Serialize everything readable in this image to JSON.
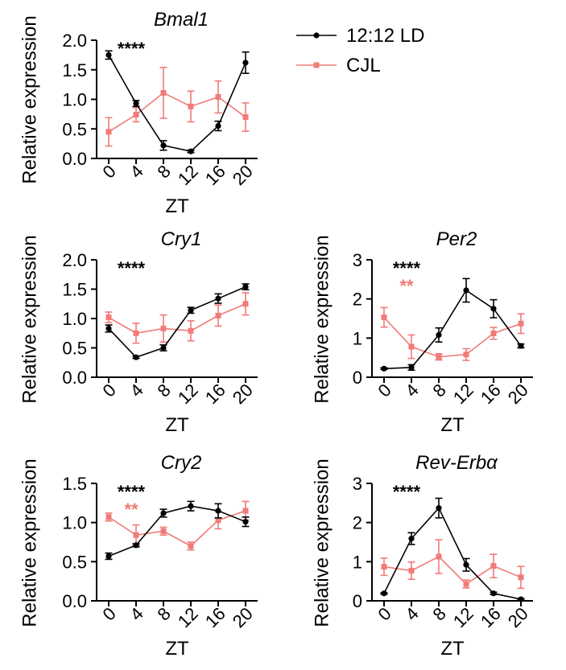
{
  "legend": {
    "entries": [
      {
        "label": "12:12 LD",
        "color": "#000000"
      },
      {
        "label": "CJL",
        "color": "#f07b78"
      }
    ]
  },
  "chart_data": [
    {
      "type": "line",
      "title": "Bmal1",
      "xlabel": "ZT",
      "ylabel": "Relative expression",
      "x": [
        0,
        4,
        8,
        12,
        16,
        20
      ],
      "x_tick_labels": [
        "0",
        "4",
        "8",
        "12",
        "16",
        "20"
      ],
      "ylim": [
        0,
        2.0
      ],
      "y_ticks": [
        0,
        0.5,
        1.0,
        1.5,
        2.0
      ],
      "y_tick_labels": [
        "0.0",
        "0.5",
        "1.0",
        "1.5",
        "2.0"
      ],
      "series": [
        {
          "name": "12:12 LD",
          "color": "#000000",
          "values": [
            1.75,
            0.93,
            0.22,
            0.12,
            0.55,
            1.62
          ],
          "errors": [
            0.07,
            0.05,
            0.08,
            0.02,
            0.08,
            0.18
          ]
        },
        {
          "name": "CJL",
          "color": "#f07b78",
          "values": [
            0.45,
            0.74,
            1.11,
            0.88,
            1.04,
            0.7
          ],
          "errors": [
            0.24,
            0.12,
            0.43,
            0.26,
            0.27,
            0.24
          ]
        }
      ],
      "significance": [
        {
          "text": "****",
          "color": "#000000"
        }
      ]
    },
    {
      "type": "line",
      "title": "Cry1",
      "xlabel": "ZT",
      "ylabel": "Relative expression",
      "x": [
        0,
        4,
        8,
        12,
        16,
        20
      ],
      "x_tick_labels": [
        "0",
        "4",
        "8",
        "12",
        "16",
        "20"
      ],
      "ylim": [
        0,
        2.0
      ],
      "y_ticks": [
        0,
        0.5,
        1.0,
        1.5,
        2.0
      ],
      "y_tick_labels": [
        "0.0",
        "0.5",
        "1.0",
        "1.5",
        "2.0"
      ],
      "series": [
        {
          "name": "12:12 LD",
          "color": "#000000",
          "values": [
            0.83,
            0.34,
            0.5,
            1.14,
            1.34,
            1.54
          ],
          "errors": [
            0.06,
            0.02,
            0.05,
            0.05,
            0.08,
            0.05
          ]
        },
        {
          "name": "CJL",
          "color": "#f07b78",
          "values": [
            1.02,
            0.75,
            0.83,
            0.79,
            1.05,
            1.25
          ],
          "errors": [
            0.09,
            0.17,
            0.23,
            0.17,
            0.18,
            0.19
          ]
        }
      ],
      "significance": [
        {
          "text": "****",
          "color": "#000000"
        }
      ]
    },
    {
      "type": "line",
      "title": "Per2",
      "xlabel": "ZT",
      "ylabel": "Relative expression",
      "x": [
        0,
        4,
        8,
        12,
        16,
        20
      ],
      "x_tick_labels": [
        "0",
        "4",
        "8",
        "12",
        "16",
        "20"
      ],
      "ylim": [
        0,
        3
      ],
      "y_ticks": [
        0,
        1,
        2,
        3
      ],
      "y_tick_labels": [
        "0",
        "1",
        "2",
        "3"
      ],
      "series": [
        {
          "name": "12:12 LD",
          "color": "#000000",
          "values": [
            0.22,
            0.25,
            1.08,
            2.22,
            1.75,
            0.8
          ],
          "errors": [
            0.02,
            0.07,
            0.18,
            0.3,
            0.23,
            0.05
          ]
        },
        {
          "name": "CJL",
          "color": "#f07b78",
          "values": [
            1.53,
            0.78,
            0.52,
            0.58,
            1.12,
            1.37
          ],
          "errors": [
            0.25,
            0.3,
            0.08,
            0.15,
            0.15,
            0.25
          ]
        }
      ],
      "significance": [
        {
          "text": "****",
          "color": "#000000"
        },
        {
          "text": "**",
          "color": "#f07b78"
        }
      ]
    },
    {
      "type": "line",
      "title": "Cry2",
      "xlabel": "ZT",
      "ylabel": "Relative expression",
      "x": [
        0,
        4,
        8,
        12,
        16,
        20
      ],
      "x_tick_labels": [
        "0",
        "4",
        "8",
        "12",
        "16",
        "20"
      ],
      "ylim": [
        0,
        1.5
      ],
      "y_ticks": [
        0,
        0.5,
        1.0,
        1.5
      ],
      "y_tick_labels": [
        "0.0",
        "0.5",
        "1.0",
        "1.5"
      ],
      "series": [
        {
          "name": "12:12 LD",
          "color": "#000000",
          "values": [
            0.57,
            0.71,
            1.12,
            1.21,
            1.15,
            1.01
          ],
          "errors": [
            0.04,
            0.02,
            0.05,
            0.06,
            0.09,
            0.06
          ]
        },
        {
          "name": "CJL",
          "color": "#f07b78",
          "values": [
            1.07,
            0.84,
            0.89,
            0.7,
            1.03,
            1.15
          ],
          "errors": [
            0.05,
            0.13,
            0.05,
            0.05,
            0.11,
            0.12
          ]
        }
      ],
      "significance": [
        {
          "text": "****",
          "color": "#000000"
        },
        {
          "text": "**",
          "color": "#f07b78"
        }
      ]
    },
    {
      "type": "line",
      "title": "Rev-Erbα",
      "xlabel": "ZT",
      "ylabel": "Relative expression",
      "x": [
        0,
        4,
        8,
        12,
        16,
        20
      ],
      "x_tick_labels": [
        "0",
        "4",
        "8",
        "12",
        "16",
        "20"
      ],
      "ylim": [
        0,
        3
      ],
      "y_ticks": [
        0,
        1,
        2,
        3
      ],
      "y_tick_labels": [
        "0",
        "1",
        "2",
        "3"
      ],
      "series": [
        {
          "name": "12:12 LD",
          "color": "#000000",
          "values": [
            0.19,
            1.59,
            2.37,
            0.92,
            0.19,
            0.04
          ],
          "errors": [
            0.02,
            0.15,
            0.25,
            0.16,
            0.03,
            0.02
          ]
        },
        {
          "name": "CJL",
          "color": "#f07b78",
          "values": [
            0.87,
            0.77,
            1.13,
            0.43,
            0.89,
            0.6
          ],
          "errors": [
            0.22,
            0.22,
            0.43,
            0.1,
            0.3,
            0.28
          ]
        }
      ],
      "significance": [
        {
          "text": "****",
          "color": "#000000"
        }
      ]
    }
  ]
}
